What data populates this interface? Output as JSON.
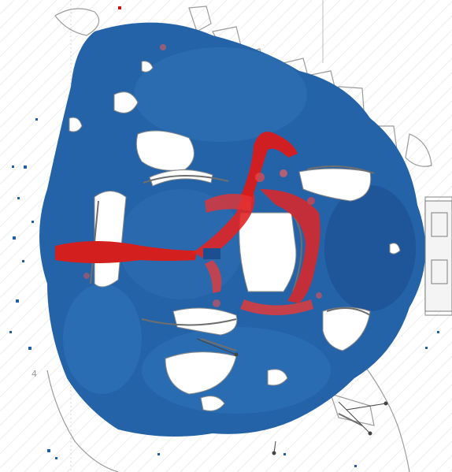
{
  "map": {
    "labels": [
      {
        "id": "corner-mark",
        "text": "4"
      }
    ]
  },
  "heatmap": {
    "palette": {
      "low": "#1f5fa8",
      "mid": "#3b7bc4",
      "high": "#e02424",
      "peak": "#c81414",
      "background": "#ffffff",
      "terrain_line": "#9c9c9c"
    }
  }
}
